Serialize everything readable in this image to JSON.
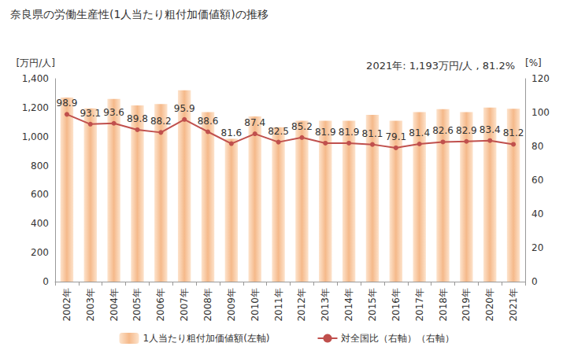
{
  "chart_data": {
    "type": "bar",
    "title": "奈良県の労働生産性(1人当たり粗付加価値額)の推移",
    "annotation": "2021年: 1,193万円/人 , 81.2%",
    "y_axis_label": "[万円/人]",
    "y2_axis_label": "[%]",
    "categories": [
      "2002年",
      "2003年",
      "2004年",
      "2005年",
      "2006年",
      "2007年",
      "2008年",
      "2009年",
      "2010年",
      "2011年",
      "2012年",
      "2013年",
      "2014年",
      "2015年",
      "2016年",
      "2017年",
      "2018年",
      "2019年",
      "2020年",
      "2021年"
    ],
    "series": [
      {
        "name": "1人当たり粗付加価値額(左軸)",
        "type": "bar",
        "color": "#f5b98a",
        "values": [
          1270,
          1195,
          1260,
          1215,
          1225,
          1320,
          1170,
          985,
          1140,
          1065,
          1110,
          1110,
          1110,
          1150,
          1110,
          1170,
          1190,
          1170,
          1200,
          1193
        ]
      },
      {
        "name": "対全国比（右軸）（右軸）",
        "type": "line",
        "axis": "y2",
        "color": "#c0504d",
        "marker": "circle",
        "data_labels": true,
        "values": [
          98.9,
          93.1,
          93.6,
          89.8,
          88.2,
          95.9,
          88.6,
          81.6,
          87.4,
          82.5,
          85.2,
          81.9,
          81.9,
          81.1,
          79.1,
          81.4,
          82.6,
          82.9,
          83.4,
          81.2
        ]
      }
    ],
    "ylim": [
      0,
      1400
    ],
    "yticks": [
      0,
      200,
      400,
      600,
      800,
      {
        "value": 1000,
        "label": "1,000"
      },
      {
        "value": 1200,
        "label": "1,200"
      },
      {
        "value": 1400,
        "label": "1,400"
      }
    ],
    "y2lim": [
      0,
      120
    ],
    "y2ticks": [
      0,
      20,
      40,
      60,
      80,
      100,
      120
    ],
    "legend": "bottom",
    "grid": false
  }
}
